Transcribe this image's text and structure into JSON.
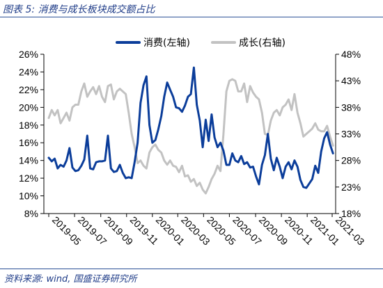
{
  "header": {
    "title": "图表 5:  消费与成长板块成交额占比"
  },
  "footer": {
    "source": "资料来源:  wind,  国盛证券研究所"
  },
  "colors": {
    "consumption": "#0b3d9a",
    "growth": "#c2c2c2",
    "accent": "#1f3c88"
  },
  "chart_data": {
    "type": "line",
    "title": "消费与成长板块成交额占比",
    "x_tick_labels": [
      "2019-05",
      "2019-07",
      "2019-09",
      "2019-11",
      "2020-01",
      "2020-03",
      "2020-05",
      "2020-07",
      "2020-09",
      "2020-11",
      "2021-01",
      "2021-03"
    ],
    "x_range": [
      "2019-05",
      "2021-03"
    ],
    "legend": [
      "消费(左轴)",
      "成长(右轴)"
    ],
    "legend_position": "top-right",
    "grid": false,
    "y_left": {
      "min": 8,
      "max": 26,
      "ticks": [
        "8%",
        "10%",
        "12%",
        "14%",
        "16%",
        "18%",
        "20%",
        "22%",
        "24%",
        "26%"
      ]
    },
    "y_right": {
      "min": 18,
      "max": 48,
      "ticks": [
        "18%",
        "23%",
        "28%",
        "33%",
        "38%",
        "43%",
        "48%"
      ]
    },
    "series": [
      {
        "name": "消费(左轴)",
        "axis": "left",
        "values": [
          [
            "2019-05-01",
            14.3
          ],
          [
            "2019-05-08",
            13.9
          ],
          [
            "2019-05-15",
            14.2
          ],
          [
            "2019-05-22",
            13.1
          ],
          [
            "2019-05-29",
            13.5
          ],
          [
            "2019-06-05",
            13.3
          ],
          [
            "2019-06-12",
            14.0
          ],
          [
            "2019-06-19",
            15.4
          ],
          [
            "2019-06-26",
            13.2
          ],
          [
            "2019-07-03",
            12.8
          ],
          [
            "2019-07-10",
            12.9
          ],
          [
            "2019-07-17",
            13.4
          ],
          [
            "2019-07-24",
            14.1
          ],
          [
            "2019-07-31",
            16.8
          ],
          [
            "2019-08-07",
            13.1
          ],
          [
            "2019-08-14",
            13.0
          ],
          [
            "2019-08-21",
            13.8
          ],
          [
            "2019-08-28",
            13.9
          ],
          [
            "2019-09-04",
            13.9
          ],
          [
            "2019-09-11",
            14.0
          ],
          [
            "2019-09-18",
            16.8
          ],
          [
            "2019-09-25",
            13.1
          ],
          [
            "2019-10-02",
            12.7
          ],
          [
            "2019-10-09",
            12.8
          ],
          [
            "2019-10-16",
            13.5
          ],
          [
            "2019-10-23",
            12.6
          ],
          [
            "2019-10-30",
            12.0
          ],
          [
            "2019-11-06",
            12.1
          ],
          [
            "2019-11-13",
            12.0
          ],
          [
            "2019-11-20",
            13.8
          ],
          [
            "2019-11-27",
            16.0
          ],
          [
            "2019-12-04",
            20.5
          ],
          [
            "2019-12-11",
            22.5
          ],
          [
            "2019-12-18",
            23.5
          ],
          [
            "2019-12-25",
            18.0
          ],
          [
            "2020-01-01",
            16.0
          ],
          [
            "2020-01-08",
            16.3
          ],
          [
            "2020-01-15",
            17.5
          ],
          [
            "2020-01-22",
            19.0
          ],
          [
            "2020-01-29",
            21.2
          ],
          [
            "2020-02-05",
            22.8
          ],
          [
            "2020-02-12",
            22.0
          ],
          [
            "2020-02-19",
            21.2
          ],
          [
            "2020-02-26",
            20.0
          ],
          [
            "2020-03-04",
            19.9
          ],
          [
            "2020-03-11",
            19.5
          ],
          [
            "2020-03-18",
            20.2
          ],
          [
            "2020-03-25",
            21.2
          ],
          [
            "2020-04-01",
            21.5
          ],
          [
            "2020-04-08",
            24.5
          ],
          [
            "2020-04-15",
            20.3
          ],
          [
            "2020-04-22",
            18.5
          ],
          [
            "2020-04-29",
            15.5
          ],
          [
            "2020-05-06",
            18.6
          ],
          [
            "2020-05-13",
            16.2
          ],
          [
            "2020-05-20",
            19.2
          ],
          [
            "2020-05-27",
            16.6
          ],
          [
            "2020-06-03",
            15.5
          ],
          [
            "2020-06-10",
            16.0
          ],
          [
            "2020-06-17",
            15.1
          ],
          [
            "2020-06-24",
            13.5
          ],
          [
            "2020-07-01",
            13.5
          ],
          [
            "2020-07-08",
            14.8
          ],
          [
            "2020-07-15",
            14.0
          ],
          [
            "2020-07-22",
            13.8
          ],
          [
            "2020-07-29",
            14.5
          ],
          [
            "2020-08-05",
            13.6
          ],
          [
            "2020-08-12",
            13.8
          ],
          [
            "2020-08-19",
            13.2
          ],
          [
            "2020-08-26",
            13.3
          ],
          [
            "2020-09-02",
            12.2
          ],
          [
            "2020-09-09",
            11.3
          ],
          [
            "2020-09-16",
            13.5
          ],
          [
            "2020-09-23",
            14.6
          ],
          [
            "2020-09-30",
            17.0
          ],
          [
            "2020-10-07",
            14.2
          ],
          [
            "2020-10-14",
            12.9
          ],
          [
            "2020-10-21",
            14.3
          ],
          [
            "2020-10-28",
            13.3
          ],
          [
            "2020-11-04",
            12.0
          ],
          [
            "2020-11-11",
            13.3
          ],
          [
            "2020-11-18",
            13.8
          ],
          [
            "2020-11-25",
            13.0
          ],
          [
            "2020-12-02",
            14.0
          ],
          [
            "2020-12-09",
            13.3
          ],
          [
            "2020-12-16",
            11.8
          ],
          [
            "2020-12-23",
            11.0
          ],
          [
            "2020-12-30",
            10.9
          ],
          [
            "2021-01-06",
            11.4
          ],
          [
            "2021-01-13",
            11.9
          ],
          [
            "2021-01-20",
            13.4
          ],
          [
            "2021-01-27",
            12.6
          ],
          [
            "2021-02-03",
            15.0
          ],
          [
            "2021-02-10",
            16.5
          ],
          [
            "2021-02-17",
            17.2
          ],
          [
            "2021-02-24",
            15.8
          ],
          [
            "2021-03-03",
            14.8
          ]
        ]
      },
      {
        "name": "成长(右轴)",
        "axis": "right",
        "values": [
          [
            "2019-05-01",
            36.0
          ],
          [
            "2019-05-08",
            37.5
          ],
          [
            "2019-05-15",
            36.5
          ],
          [
            "2019-05-22",
            37.5
          ],
          [
            "2019-05-29",
            35.0
          ],
          [
            "2019-06-05",
            36.0
          ],
          [
            "2019-06-12",
            37.0
          ],
          [
            "2019-06-19",
            35.5
          ],
          [
            "2019-06-26",
            38.0
          ],
          [
            "2019-07-03",
            38.5
          ],
          [
            "2019-07-10",
            38.5
          ],
          [
            "2019-07-17",
            41.0
          ],
          [
            "2019-07-24",
            42.5
          ],
          [
            "2019-07-31",
            40.0
          ],
          [
            "2019-08-07",
            41.0
          ],
          [
            "2019-08-14",
            41.8
          ],
          [
            "2019-08-21",
            40.5
          ],
          [
            "2019-08-28",
            42.0
          ],
          [
            "2019-09-04",
            40.0
          ],
          [
            "2019-09-11",
            39.0
          ],
          [
            "2019-09-18",
            42.0
          ],
          [
            "2019-09-25",
            42.3
          ],
          [
            "2019-10-02",
            39.5
          ],
          [
            "2019-10-09",
            41.0
          ],
          [
            "2019-10-16",
            41.5
          ],
          [
            "2019-10-23",
            41.0
          ],
          [
            "2019-10-30",
            40.5
          ],
          [
            "2019-11-06",
            37.0
          ],
          [
            "2019-11-13",
            33.0
          ],
          [
            "2019-11-20",
            30.5
          ],
          [
            "2019-11-27",
            27.5
          ],
          [
            "2019-12-04",
            28.0
          ],
          [
            "2019-12-11",
            27.0
          ],
          [
            "2019-12-18",
            26.5
          ],
          [
            "2019-12-25",
            29.5
          ],
          [
            "2020-01-01",
            30.5
          ],
          [
            "2020-01-08",
            31.0
          ],
          [
            "2020-01-15",
            30.0
          ],
          [
            "2020-01-22",
            29.5
          ],
          [
            "2020-01-29",
            28.0
          ],
          [
            "2020-02-05",
            27.2
          ],
          [
            "2020-02-12",
            28.0
          ],
          [
            "2020-02-19",
            27.0
          ],
          [
            "2020-02-26",
            26.8
          ],
          [
            "2020-03-04",
            25.8
          ],
          [
            "2020-03-11",
            27.0
          ],
          [
            "2020-03-18",
            25.0
          ],
          [
            "2020-03-25",
            25.2
          ],
          [
            "2020-04-01",
            24.0
          ],
          [
            "2020-04-08",
            24.5
          ],
          [
            "2020-04-15",
            23.2
          ],
          [
            "2020-04-22",
            23.8
          ],
          [
            "2020-04-29",
            22.5
          ],
          [
            "2020-05-06",
            21.8
          ],
          [
            "2020-05-13",
            23.0
          ],
          [
            "2020-05-20",
            24.5
          ],
          [
            "2020-05-27",
            25.5
          ],
          [
            "2020-06-03",
            27.0
          ],
          [
            "2020-06-10",
            26.0
          ],
          [
            "2020-06-17",
            33.0
          ],
          [
            "2020-06-24",
            41.0
          ],
          [
            "2020-07-01",
            43.0
          ],
          [
            "2020-07-08",
            43.3
          ],
          [
            "2020-07-15",
            43.0
          ],
          [
            "2020-07-22",
            41.0
          ],
          [
            "2020-07-29",
            41.0
          ],
          [
            "2020-08-05",
            42.5
          ],
          [
            "2020-08-12",
            39.0
          ],
          [
            "2020-08-19",
            42.0
          ],
          [
            "2020-08-26",
            40.8
          ],
          [
            "2020-09-02",
            40.0
          ],
          [
            "2020-09-09",
            39.5
          ],
          [
            "2020-09-16",
            37.0
          ],
          [
            "2020-09-23",
            33.0
          ],
          [
            "2020-09-30",
            32.8
          ],
          [
            "2020-10-07",
            35.5
          ],
          [
            "2020-10-14",
            37.0
          ],
          [
            "2020-10-21",
            37.5
          ],
          [
            "2020-10-28",
            36.5
          ],
          [
            "2020-11-04",
            38.0
          ],
          [
            "2020-11-11",
            38.5
          ],
          [
            "2020-11-18",
            39.5
          ],
          [
            "2020-11-25",
            37.5
          ],
          [
            "2020-12-02",
            40.5
          ],
          [
            "2020-12-09",
            37.0
          ],
          [
            "2020-12-16",
            35.0
          ],
          [
            "2020-12-23",
            32.5
          ],
          [
            "2020-12-30",
            33.0
          ],
          [
            "2021-01-06",
            33.5
          ],
          [
            "2021-01-13",
            34.0
          ],
          [
            "2021-01-20",
            35.0
          ],
          [
            "2021-01-27",
            33.8
          ],
          [
            "2021-02-03",
            33.5
          ],
          [
            "2021-02-10",
            33.5
          ],
          [
            "2021-02-17",
            34.5
          ],
          [
            "2021-02-24",
            32.5
          ],
          [
            "2021-03-03",
            30.8
          ]
        ]
      }
    ]
  }
}
